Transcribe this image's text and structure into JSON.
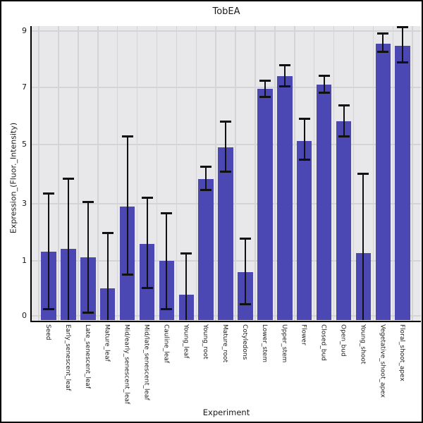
{
  "chart_data": {
    "type": "bar",
    "title": "TobEA",
    "xlabel": "Experiment",
    "ylabel": "Expression_(Fluor._Intensity)",
    "legend": false,
    "grid": true,
    "yticks": [
      0,
      1,
      3,
      5,
      7,
      9
    ],
    "ylim": [
      -0.1,
      9.2
    ],
    "bar_color": "#4b48b4",
    "plot_bg_color": "#e8e7ea",
    "grid_color": "#d4d4d6",
    "error_bar_color": "#111111",
    "points": [
      {
        "label": "Seed",
        "value": 1.3,
        "err_low": 0.12,
        "err_high": 3.33,
        "low_cap": true
      },
      {
        "label": "Early_senescent_leaf",
        "value": 1.4,
        "err_low": 0.0,
        "err_high": 3.83,
        "low_cap": false
      },
      {
        "label": "Late_senescent_leaf",
        "value": 1.12,
        "err_low": 0.05,
        "err_high": 3.05,
        "low_cap": true
      },
      {
        "label": "Mature_leaf",
        "value": 0.5,
        "err_low": 0.0,
        "err_high": 1.96,
        "low_cap": false
      },
      {
        "label": "Mid/early_senescent_leaf",
        "value": 2.9,
        "err_low": 0.75,
        "err_high": 5.28,
        "low_cap": true
      },
      {
        "label": "Mid/late_senescent_leaf",
        "value": 1.59,
        "err_low": 0.5,
        "err_high": 3.19,
        "low_cap": true
      },
      {
        "label": "Cauline_leaf",
        "value": 1.0,
        "err_low": 0.11,
        "err_high": 2.65,
        "low_cap": true
      },
      {
        "label": "Young_leaf",
        "value": 0.38,
        "err_low": 0.0,
        "err_high": 1.25,
        "low_cap": false
      },
      {
        "label": "Young_root",
        "value": 3.81,
        "err_low": 3.45,
        "err_high": 4.24,
        "low_cap": true
      },
      {
        "label": "Mature_root",
        "value": 4.9,
        "err_low": 4.07,
        "err_high": 5.8,
        "low_cap": true
      },
      {
        "label": "Cotyledons",
        "value": 0.79,
        "err_low": 0.2,
        "err_high": 1.77,
        "low_cap": true
      },
      {
        "label": "Lower_stem",
        "value": 6.95,
        "err_low": 6.66,
        "err_high": 7.23,
        "low_cap": true
      },
      {
        "label": "Upper_stem",
        "value": 7.38,
        "err_low": 7.03,
        "err_high": 7.78,
        "low_cap": true
      },
      {
        "label": "Flower",
        "value": 5.12,
        "err_low": 4.48,
        "err_high": 5.88,
        "low_cap": true
      },
      {
        "label": "Closed_bud",
        "value": 7.08,
        "err_low": 6.8,
        "err_high": 7.41,
        "low_cap": true
      },
      {
        "label": "Open_bud",
        "value": 5.8,
        "err_low": 5.27,
        "err_high": 6.37,
        "low_cap": true
      },
      {
        "label": "Young_shoot",
        "value": 1.25,
        "err_low": 0.0,
        "err_high": 4.0,
        "low_cap": false
      },
      {
        "label": "Vegetative_shoot_apex",
        "value": 8.55,
        "err_low": 8.25,
        "err_high": 8.92,
        "low_cap": true
      },
      {
        "label": "Floral_shoot_apex",
        "value": 8.47,
        "err_low": 7.89,
        "err_high": 9.13,
        "low_cap": true
      }
    ]
  }
}
